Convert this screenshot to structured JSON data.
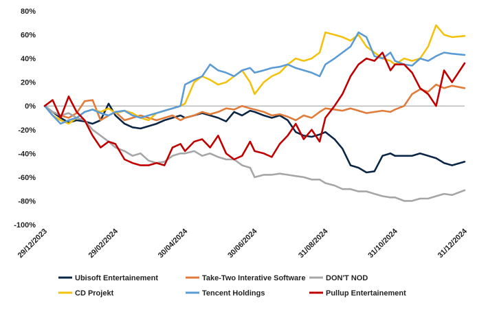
{
  "chart_data": {
    "type": "line",
    "title": "",
    "xlabel": "",
    "ylabel": "",
    "ylim": [
      -100,
      80
    ],
    "y_ticks": [
      "80%",
      "60%",
      "40%",
      "20%",
      "0%",
      "-20%",
      "-40%",
      "-60%",
      "-80%",
      "-100%"
    ],
    "y_tick_values": [
      80,
      60,
      40,
      20,
      0,
      -20,
      -40,
      -60,
      -80,
      -100
    ],
    "x_tick_labels": [
      "29/12/2023",
      "29/02/2024",
      "30/04/2024",
      "30/06/2024",
      "31/08/2024",
      "31/10/2024",
      "31/12/2024"
    ],
    "x_tick_dates": [
      "2023-12-29",
      "2024-02-29",
      "2024-04-30",
      "2024-06-30",
      "2024-08-31",
      "2024-10-31",
      "2024-12-31"
    ],
    "grid": false,
    "legend_position": "bottom",
    "series": [
      {
        "name": "Ubisoft Entertainement",
        "color": "#0b2545",
        "x": [
          "2023-12-29",
          "2024-01-05",
          "2024-01-12",
          "2024-01-19",
          "2024-01-26",
          "2024-02-02",
          "2024-02-09",
          "2024-02-16",
          "2024-02-23",
          "2024-02-29",
          "2024-03-08",
          "2024-03-15",
          "2024-03-22",
          "2024-03-29",
          "2024-04-05",
          "2024-04-12",
          "2024-04-19",
          "2024-04-26",
          "2024-04-30",
          "2024-05-08",
          "2024-05-15",
          "2024-05-22",
          "2024-05-29",
          "2024-06-05",
          "2024-06-12",
          "2024-06-19",
          "2024-06-26",
          "2024-06-30",
          "2024-07-08",
          "2024-07-15",
          "2024-07-22",
          "2024-07-29",
          "2024-08-05",
          "2024-08-12",
          "2024-08-19",
          "2024-08-26",
          "2024-08-31",
          "2024-09-08",
          "2024-09-15",
          "2024-09-22",
          "2024-09-29",
          "2024-10-06",
          "2024-10-13",
          "2024-10-20",
          "2024-10-27",
          "2024-10-31",
          "2024-11-08",
          "2024-11-15",
          "2024-11-22",
          "2024-11-29",
          "2024-12-06",
          "2024-12-13",
          "2024-12-20",
          "2024-12-31"
        ],
        "y": [
          0,
          -5,
          -10,
          -14,
          -12,
          -13,
          -15,
          -12,
          2,
          -8,
          -15,
          -18,
          -19,
          -17,
          -15,
          -12,
          -10,
          -8,
          -10,
          -8,
          -6,
          -8,
          -10,
          -13,
          -5,
          -8,
          -4,
          -5,
          -8,
          -10,
          -8,
          -12,
          -22,
          -25,
          -26,
          -24,
          -22,
          -28,
          -36,
          -50,
          -52,
          -56,
          -55,
          -42,
          -40,
          -42,
          -42,
          -42,
          -40,
          -42,
          -44,
          -48,
          -50,
          -47
        ]
      },
      {
        "name": "Take-Two Interative Software",
        "color": "#e07b39",
        "x": [
          "2023-12-29",
          "2024-01-05",
          "2024-01-12",
          "2024-01-19",
          "2024-01-26",
          "2024-02-02",
          "2024-02-09",
          "2024-02-16",
          "2024-02-23",
          "2024-02-29",
          "2024-03-08",
          "2024-03-15",
          "2024-03-22",
          "2024-03-29",
          "2024-04-05",
          "2024-04-12",
          "2024-04-19",
          "2024-04-26",
          "2024-04-30",
          "2024-05-08",
          "2024-05-15",
          "2024-05-22",
          "2024-05-29",
          "2024-06-05",
          "2024-06-12",
          "2024-06-19",
          "2024-06-26",
          "2024-06-30",
          "2024-07-08",
          "2024-07-15",
          "2024-07-22",
          "2024-07-29",
          "2024-08-05",
          "2024-08-12",
          "2024-08-19",
          "2024-08-26",
          "2024-08-31",
          "2024-09-08",
          "2024-09-15",
          "2024-09-22",
          "2024-09-29",
          "2024-10-06",
          "2024-10-13",
          "2024-10-20",
          "2024-10-27",
          "2024-10-31",
          "2024-11-08",
          "2024-11-15",
          "2024-11-22",
          "2024-11-29",
          "2024-12-06",
          "2024-12-13",
          "2024-12-20",
          "2024-12-31"
        ],
        "y": [
          0,
          -5,
          -8,
          -10,
          -6,
          4,
          5,
          -12,
          -8,
          -5,
          -12,
          -10,
          -8,
          -10,
          -12,
          -10,
          -8,
          -12,
          -10,
          -8,
          -5,
          -7,
          -5,
          -2,
          -3,
          0,
          -2,
          -3,
          -5,
          -8,
          -7,
          -9,
          -12,
          -8,
          -10,
          -5,
          -2,
          -3,
          -4,
          -2,
          -4,
          -6,
          -5,
          -4,
          -5,
          -3,
          0,
          10,
          14,
          12,
          18,
          15,
          17,
          15
        ]
      },
      {
        "name": "DON'T NOD",
        "color": "#a6a6a6",
        "x": [
          "2023-12-29",
          "2024-01-05",
          "2024-01-12",
          "2024-01-19",
          "2024-01-26",
          "2024-02-02",
          "2024-02-09",
          "2024-02-16",
          "2024-02-23",
          "2024-02-29",
          "2024-03-08",
          "2024-03-15",
          "2024-03-22",
          "2024-03-29",
          "2024-04-05",
          "2024-04-12",
          "2024-04-19",
          "2024-04-26",
          "2024-04-30",
          "2024-05-08",
          "2024-05-15",
          "2024-05-22",
          "2024-05-29",
          "2024-06-05",
          "2024-06-12",
          "2024-06-19",
          "2024-06-26",
          "2024-06-30",
          "2024-07-08",
          "2024-07-15",
          "2024-07-22",
          "2024-07-29",
          "2024-08-05",
          "2024-08-12",
          "2024-08-19",
          "2024-08-26",
          "2024-08-31",
          "2024-09-08",
          "2024-09-15",
          "2024-09-22",
          "2024-09-29",
          "2024-10-06",
          "2024-10-13",
          "2024-10-20",
          "2024-10-27",
          "2024-10-31",
          "2024-11-08",
          "2024-11-15",
          "2024-11-22",
          "2024-11-29",
          "2024-12-06",
          "2024-12-13",
          "2024-12-20",
          "2024-12-31"
        ],
        "y": [
          0,
          -5,
          -8,
          -6,
          -10,
          -12,
          -20,
          -25,
          -30,
          -35,
          -38,
          -42,
          -40,
          -46,
          -48,
          -47,
          -42,
          -40,
          -40,
          -38,
          -42,
          -40,
          -43,
          -45,
          -45,
          -50,
          -52,
          -60,
          -58,
          -58,
          -57,
          -58,
          -59,
          -60,
          -62,
          -62,
          -65,
          -67,
          -70,
          -70,
          -72,
          -72,
          -74,
          -76,
          -77,
          -77,
          -80,
          -80,
          -78,
          -78,
          -76,
          -74,
          -75,
          -71
        ]
      },
      {
        "name": "CD Projekt",
        "color": "#f2c20f",
        "x": [
          "2023-12-29",
          "2024-01-05",
          "2024-01-12",
          "2024-01-19",
          "2024-01-26",
          "2024-02-02",
          "2024-02-09",
          "2024-02-16",
          "2024-02-23",
          "2024-02-29",
          "2024-03-08",
          "2024-03-15",
          "2024-03-22",
          "2024-03-29",
          "2024-04-05",
          "2024-04-12",
          "2024-04-19",
          "2024-04-26",
          "2024-04-30",
          "2024-05-08",
          "2024-05-15",
          "2024-05-22",
          "2024-05-29",
          "2024-06-05",
          "2024-06-12",
          "2024-06-19",
          "2024-06-26",
          "2024-06-30",
          "2024-07-08",
          "2024-07-15",
          "2024-07-22",
          "2024-07-29",
          "2024-08-05",
          "2024-08-12",
          "2024-08-19",
          "2024-08-26",
          "2024-08-31",
          "2024-09-08",
          "2024-09-15",
          "2024-09-22",
          "2024-09-29",
          "2024-10-06",
          "2024-10-13",
          "2024-10-20",
          "2024-10-27",
          "2024-10-31",
          "2024-11-08",
          "2024-11-15",
          "2024-11-22",
          "2024-11-29",
          "2024-12-06",
          "2024-12-13",
          "2024-12-20",
          "2024-12-31"
        ],
        "y": [
          0,
          -8,
          -12,
          -15,
          -10,
          -5,
          -3,
          -5,
          -2,
          -6,
          -4,
          -6,
          -10,
          -12,
          -6,
          -4,
          -2,
          0,
          2,
          20,
          25,
          22,
          18,
          20,
          25,
          30,
          20,
          10,
          20,
          25,
          28,
          35,
          40,
          38,
          40,
          45,
          62,
          60,
          58,
          55,
          60,
          50,
          45,
          40,
          38,
          35,
          40,
          38,
          40,
          50,
          68,
          60,
          58,
          59
        ]
      },
      {
        "name": "Tencent Holdings",
        "color": "#5b9bd5",
        "x": [
          "2023-12-29",
          "2024-01-05",
          "2024-01-12",
          "2024-01-19",
          "2024-01-26",
          "2024-02-02",
          "2024-02-09",
          "2024-02-16",
          "2024-02-23",
          "2024-02-29",
          "2024-03-08",
          "2024-03-15",
          "2024-03-22",
          "2024-03-29",
          "2024-04-05",
          "2024-04-12",
          "2024-04-19",
          "2024-04-26",
          "2024-04-30",
          "2024-05-08",
          "2024-05-15",
          "2024-05-22",
          "2024-05-29",
          "2024-06-05",
          "2024-06-12",
          "2024-06-19",
          "2024-06-26",
          "2024-06-30",
          "2024-07-08",
          "2024-07-15",
          "2024-07-22",
          "2024-07-29",
          "2024-08-05",
          "2024-08-12",
          "2024-08-19",
          "2024-08-26",
          "2024-08-31",
          "2024-09-08",
          "2024-09-15",
          "2024-09-22",
          "2024-09-29",
          "2024-10-06",
          "2024-10-13",
          "2024-10-20",
          "2024-10-27",
          "2024-10-31",
          "2024-11-08",
          "2024-11-15",
          "2024-11-22",
          "2024-11-29",
          "2024-12-06",
          "2024-12-13",
          "2024-12-20",
          "2024-12-31"
        ],
        "y": [
          0,
          -8,
          -15,
          -12,
          -10,
          -5,
          -3,
          -6,
          -8,
          -5,
          -4,
          -8,
          -10,
          -8,
          -6,
          -4,
          -2,
          0,
          18,
          22,
          25,
          35,
          30,
          28,
          25,
          30,
          32,
          28,
          30,
          32,
          33,
          35,
          32,
          30,
          28,
          25,
          35,
          40,
          45,
          50,
          62,
          58,
          42,
          40,
          45,
          38,
          35,
          34,
          40,
          38,
          42,
          45,
          44,
          43
        ]
      },
      {
        "name": "Pullup Entertainement",
        "color": "#c00000",
        "x": [
          "2023-12-29",
          "2024-01-05",
          "2024-01-12",
          "2024-01-19",
          "2024-01-26",
          "2024-02-02",
          "2024-02-09",
          "2024-02-16",
          "2024-02-23",
          "2024-02-29",
          "2024-03-08",
          "2024-03-15",
          "2024-03-22",
          "2024-03-29",
          "2024-04-05",
          "2024-04-12",
          "2024-04-19",
          "2024-04-26",
          "2024-04-30",
          "2024-05-08",
          "2024-05-15",
          "2024-05-22",
          "2024-05-29",
          "2024-06-05",
          "2024-06-12",
          "2024-06-19",
          "2024-06-26",
          "2024-06-30",
          "2024-07-08",
          "2024-07-15",
          "2024-07-22",
          "2024-07-29",
          "2024-08-05",
          "2024-08-12",
          "2024-08-19",
          "2024-08-26",
          "2024-08-31",
          "2024-09-08",
          "2024-09-15",
          "2024-09-22",
          "2024-09-29",
          "2024-10-06",
          "2024-10-13",
          "2024-10-20",
          "2024-10-27",
          "2024-10-31",
          "2024-11-08",
          "2024-11-15",
          "2024-11-22",
          "2024-11-29",
          "2024-12-06",
          "2024-12-13",
          "2024-12-20",
          "2024-12-31"
        ],
        "y": [
          0,
          5,
          -10,
          8,
          -5,
          -12,
          -25,
          -35,
          -30,
          -32,
          -45,
          -48,
          -50,
          -50,
          -48,
          -50,
          -35,
          -32,
          -38,
          -30,
          -28,
          -35,
          -25,
          -40,
          -45,
          -42,
          -30,
          -38,
          -40,
          -43,
          -32,
          -25,
          -15,
          -28,
          -20,
          -30,
          -10,
          0,
          10,
          25,
          35,
          40,
          38,
          45,
          30,
          35,
          35,
          28,
          15,
          10,
          0,
          30,
          20,
          36
        ]
      }
    ]
  }
}
